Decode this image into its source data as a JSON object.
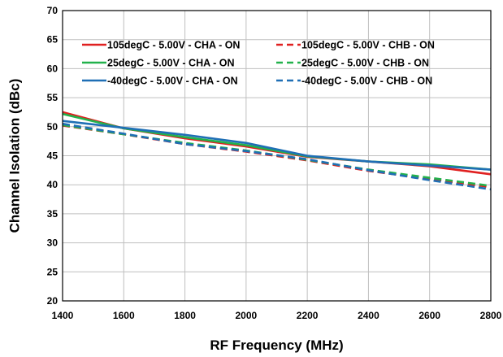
{
  "chart_data": {
    "type": "line",
    "xlabel": "RF Frequency (MHz)",
    "ylabel": "Channel Isolation (dBc)",
    "xlim": [
      1400,
      2800
    ],
    "ylim": [
      20,
      70
    ],
    "xticks": [
      1400,
      1600,
      1800,
      2000,
      2200,
      2400,
      2600,
      2800
    ],
    "yticks": [
      20,
      25,
      30,
      35,
      40,
      45,
      50,
      55,
      60,
      65,
      70
    ],
    "grid": true,
    "legend_position": "top",
    "series": [
      {
        "name": "105degC - 5.00V - CHA - ON",
        "color": "#e02020",
        "dash": false,
        "x": [
          1400,
          1600,
          1800,
          2000,
          2200,
          2400,
          2600,
          2800
        ],
        "y": [
          52.5,
          49.7,
          48.0,
          46.6,
          44.8,
          44.0,
          43.2,
          41.8
        ]
      },
      {
        "name": "105degC - 5.00V - CHB - ON",
        "color": "#e02020",
        "dash": true,
        "x": [
          1400,
          1600,
          1800,
          2000,
          2200,
          2400,
          2600,
          2800
        ],
        "y": [
          50.2,
          48.7,
          47.0,
          45.7,
          44.2,
          42.4,
          41.0,
          39.6
        ]
      },
      {
        "name": "25degC - 5.00V - CHA - ON",
        "color": "#22b14c",
        "dash": false,
        "x": [
          1400,
          1600,
          1800,
          2000,
          2200,
          2400,
          2600,
          2800
        ],
        "y": [
          52.2,
          49.7,
          48.2,
          46.8,
          44.9,
          44.0,
          43.5,
          42.6
        ]
      },
      {
        "name": "25degC - 5.00V - CHB - ON",
        "color": "#22b14c",
        "dash": true,
        "x": [
          1400,
          1600,
          1800,
          2000,
          2200,
          2400,
          2600,
          2800
        ],
        "y": [
          50.3,
          48.7,
          47.2,
          45.9,
          44.3,
          42.6,
          41.2,
          39.8
        ]
      },
      {
        "name": "-40degC - 5.00V - CHA - ON",
        "color": "#1f6fb5",
        "dash": false,
        "x": [
          1400,
          1600,
          1800,
          2000,
          2200,
          2400,
          2600,
          2800
        ],
        "y": [
          51.0,
          49.8,
          48.6,
          47.2,
          45.0,
          44.0,
          43.3,
          42.6
        ]
      },
      {
        "name": "-40degC - 5.00V - CHB - ON",
        "color": "#1f6fb5",
        "dash": true,
        "x": [
          1400,
          1600,
          1800,
          2000,
          2200,
          2400,
          2600,
          2800
        ],
        "y": [
          50.5,
          48.8,
          47.0,
          45.8,
          44.4,
          42.5,
          40.8,
          39.2
        ]
      }
    ]
  }
}
